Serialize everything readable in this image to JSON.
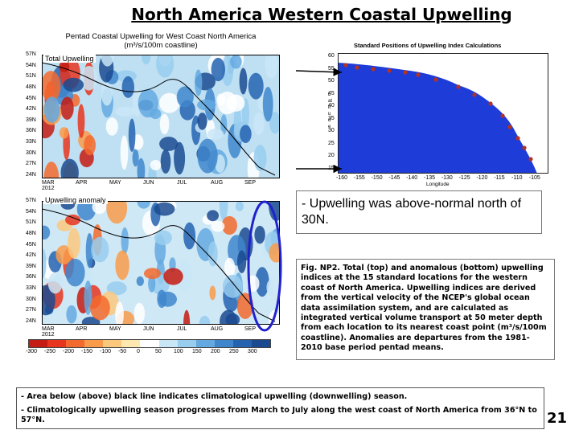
{
  "slide": {
    "title": "North America Western Coastal Upwelling",
    "page_number": "21"
  },
  "figure": {
    "title_line1": "Pentad Coastal Upwelling for West Coast North America",
    "title_line2": "(m³/s/100m coastline)",
    "top_panel_label": "Total Upwelling",
    "bottom_panel_label": "Upwelling anomaly",
    "y_ticks": [
      "57N",
      "54N",
      "51N",
      "48N",
      "45N",
      "42N",
      "39N",
      "36N",
      "33N",
      "30N",
      "27N",
      "24N"
    ],
    "x_ticks": [
      "MAR",
      "APR",
      "MAY",
      "JUN",
      "JUL",
      "AUG",
      "SEP"
    ],
    "x_year": "2012",
    "colorbar_ticks": [
      "-300",
      "-250",
      "-200",
      "-150",
      "-100",
      "-50",
      "0",
      "50",
      "100",
      "150",
      "200",
      "250",
      "300"
    ],
    "colorbar_colors": [
      "#c41b12",
      "#e8351f",
      "#f36a2e",
      "#f99b4a",
      "#fcc87e",
      "#fde9b0",
      "#ffffff",
      "#c9e6f7",
      "#98cdee",
      "#64a9e0",
      "#3f86cc",
      "#2563b0",
      "#1b4a90"
    ],
    "highlight_color": "#2222cc"
  },
  "map": {
    "title": "Standard Positions of Upwelling Index Calculations",
    "xlabel": "Longitude",
    "ylabel": "Latitude",
    "y_ticks": [
      "60",
      "55",
      "50",
      "45",
      "40",
      "35",
      "30",
      "25",
      "20",
      "15"
    ],
    "x_ticks": [
      "-160",
      "-155",
      "-150",
      "-145",
      "-140",
      "-135",
      "-130",
      "-125",
      "-120",
      "-115",
      "-110",
      "-105"
    ],
    "ocean_color": "#1e3cd8",
    "land_color": "#ffffff",
    "station_color": "#b33222"
  },
  "bullet": {
    "text": "- Upwelling was above-normal north of 30N."
  },
  "caption": {
    "text": "Fig. NP2. Total (top) and anomalous (bottom) upwelling indices at the 15 standard locations for the western coast of North America. Upwelling indices are derived from the vertical velocity of the NCEP's global ocean data assimilation system, and are calculated as integrated vertical volume transport at 50 meter depth from each location to its nearest coast point (m³/s/100m coastline). Anomalies are departures from the 1981-2010 base period pentad means."
  },
  "notes": {
    "line1": "- Area below (above) black line indicates climatological upwelling (downwelling) season.",
    "line2": "- Climatologically upwelling season progresses from March to July along the west coast of North America from 36°N to 57°N."
  }
}
